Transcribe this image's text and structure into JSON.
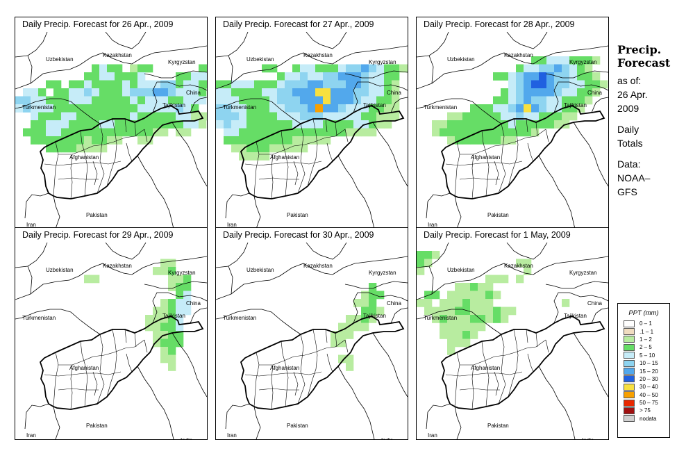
{
  "panels": [
    {
      "title": "Daily Precip. Forecast for  26 Apr., 2009",
      "precip": [
        [
          3,
          10,
          [
            3,
            4,
            3,
            3,
            0,
            2,
            3,
            3,
            0,
            0,
            0,
            0,
            0,
            0,
            3,
            3,
            3
          ]
        ],
        [
          4,
          9,
          [
            3,
            3,
            4,
            4,
            3,
            3,
            3,
            4,
            0,
            0,
            0,
            0,
            3,
            3,
            4,
            4,
            4
          ]
        ],
        [
          5,
          4,
          [
            3,
            3,
            0,
            3,
            3,
            4,
            3,
            3,
            3,
            3,
            4,
            3,
            4,
            4,
            4,
            5,
            5,
            3,
            4,
            4,
            3,
            3
          ]
        ],
        [
          6,
          1,
          [
            4,
            4,
            3,
            0,
            3,
            3,
            4,
            4,
            5,
            4,
            3,
            3,
            3,
            4,
            5,
            5,
            5,
            6,
            6,
            5,
            4,
            4,
            4,
            3
          ]
        ],
        [
          7,
          0,
          [
            5,
            5,
            4,
            4,
            3,
            3,
            3,
            4,
            4,
            4,
            3,
            3,
            3,
            3,
            3,
            4,
            3,
            4,
            4,
            4,
            3,
            3,
            4,
            4,
            4
          ]
        ],
        [
          8,
          0,
          [
            4,
            5,
            4,
            4,
            4,
            3,
            3,
            3,
            3,
            3,
            3,
            3,
            3,
            3,
            3,
            3,
            4,
            4,
            4,
            4,
            4,
            5,
            4,
            3
          ]
        ],
        [
          9,
          2,
          [
            4,
            3,
            3,
            3,
            4,
            4,
            3,
            3,
            3,
            3,
            3,
            3,
            3,
            4,
            3,
            3,
            3,
            3,
            3,
            4,
            4,
            2,
            2,
            2
          ]
        ],
        [
          10,
          2,
          [
            3,
            3,
            4,
            4,
            4,
            3,
            3,
            3,
            3,
            4,
            4,
            3,
            3,
            3,
            3,
            3,
            3,
            3,
            3,
            3,
            4,
            4,
            2
          ]
        ],
        [
          11,
          1,
          [
            3,
            3,
            3,
            4,
            4,
            3,
            3,
            3,
            3,
            3,
            3,
            3,
            3,
            3,
            3,
            3,
            3,
            2,
            2,
            0,
            2,
            2
          ]
        ],
        [
          12,
          2,
          [
            3,
            3,
            3,
            3,
            3,
            3,
            3,
            2,
            3,
            3,
            2,
            2,
            0,
            0,
            2,
            2
          ]
        ],
        [
          13,
          4,
          [
            3,
            3,
            3,
            3,
            2,
            2,
            2,
            2
          ]
        ]
      ]
    },
    {
      "title": "Daily Precip. Forecast for  27 Apr., 2009",
      "precip": [
        [
          3,
          6,
          [
            3,
            3,
            0,
            0,
            3,
            4,
            4,
            3,
            3,
            3,
            4,
            5,
            5,
            6,
            5,
            4,
            3,
            3,
            2,
            2,
            2
          ]
        ],
        [
          4,
          8,
          [
            3,
            4,
            4,
            5,
            4,
            4,
            5,
            5,
            6,
            6,
            6,
            5,
            4,
            4,
            3,
            3
          ]
        ],
        [
          5,
          0,
          [
            3,
            3,
            4,
            4,
            4,
            3,
            3,
            3,
            4,
            5,
            5,
            5,
            6,
            6,
            5,
            5,
            5,
            6,
            6,
            5,
            4,
            4,
            3,
            2
          ]
        ],
        [
          6,
          0,
          [
            4,
            4,
            3,
            3,
            3,
            3,
            4,
            4,
            5,
            5,
            6,
            6,
            6,
            8,
            8,
            6,
            6,
            6,
            5,
            5,
            4,
            4,
            3,
            2
          ]
        ],
        [
          7,
          0,
          [
            4,
            4,
            4,
            3,
            3,
            3,
            3,
            4,
            5,
            5,
            5,
            6,
            6,
            6,
            8,
            6,
            6,
            6,
            5,
            4,
            4,
            3,
            3,
            2
          ]
        ],
        [
          8,
          0,
          [
            5,
            5,
            4,
            4,
            3,
            3,
            3,
            4,
            4,
            5,
            5,
            5,
            6,
            9,
            6,
            6,
            5,
            4,
            4,
            4,
            3,
            3,
            2,
            2
          ]
        ],
        [
          9,
          0,
          [
            5,
            5,
            5,
            4,
            3,
            3,
            3,
            3,
            4,
            4,
            4,
            5,
            5,
            5,
            4,
            4,
            4,
            4,
            4,
            3,
            3,
            2,
            2,
            2
          ]
        ],
        [
          10,
          0,
          [
            4,
            5,
            4,
            4,
            3,
            3,
            3,
            3,
            3,
            3,
            4,
            4,
            4,
            4,
            3,
            3,
            3,
            3,
            4,
            4,
            3,
            2,
            2
          ]
        ],
        [
          11,
          1,
          [
            4,
            4,
            3,
            3,
            3,
            3,
            3,
            3,
            3,
            3,
            3,
            3,
            3,
            3,
            3,
            3,
            2,
            2,
            2,
            2
          ]
        ],
        [
          12,
          1,
          [
            3,
            3,
            3,
            3,
            3,
            3,
            3,
            3,
            3,
            2,
            2,
            2,
            2,
            2
          ]
        ],
        [
          13,
          2,
          [
            2,
            2,
            3,
            3,
            3,
            2,
            2,
            2,
            2,
            2
          ]
        ],
        [
          14,
          3,
          [
            2,
            2,
            2,
            2
          ]
        ]
      ]
    },
    {
      "title": "Daily Precip. Forecast for  28 Apr., 2009",
      "precip": [
        [
          2,
          15,
          [
            3,
            3,
            4,
            4,
            4,
            3,
            3,
            3,
            2
          ]
        ],
        [
          3,
          13,
          [
            3,
            4,
            4,
            5,
            5,
            6,
            5,
            4,
            3,
            2
          ]
        ],
        [
          4,
          10,
          [
            3,
            3,
            4,
            5,
            6,
            6,
            7,
            6,
            5,
            5,
            4,
            3,
            3,
            2
          ]
        ],
        [
          5,
          12,
          [
            4,
            5,
            6,
            7,
            7,
            6,
            5,
            5,
            4,
            4,
            3,
            3,
            2
          ]
        ],
        [
          6,
          11,
          [
            3,
            4,
            5,
            6,
            6,
            6,
            6,
            5,
            4,
            4,
            3,
            3,
            2
          ]
        ],
        [
          7,
          10,
          [
            3,
            3,
            4,
            5,
            6,
            5,
            5,
            4,
            4,
            3,
            3,
            3,
            2
          ]
        ],
        [
          8,
          7,
          [
            3,
            3,
            3,
            4,
            4,
            5,
            6,
            8,
            6,
            5,
            4,
            4,
            3,
            3,
            2
          ]
        ],
        [
          9,
          4,
          [
            2,
            2,
            3,
            3,
            3,
            3,
            3,
            4,
            4,
            5,
            4,
            4,
            3,
            3,
            3,
            2,
            2
          ]
        ],
        [
          10,
          2,
          [
            2,
            2,
            3,
            3,
            3,
            3,
            3,
            3,
            3,
            3,
            4,
            3,
            3,
            3,
            3,
            3,
            2,
            2
          ]
        ],
        [
          11,
          2,
          [
            2,
            3,
            3,
            3,
            3,
            3,
            3,
            3,
            3,
            3,
            3,
            3,
            3,
            2
          ]
        ],
        [
          12,
          4,
          [
            2,
            3,
            3,
            3,
            3,
            3,
            3,
            2,
            2
          ]
        ]
      ]
    },
    {
      "title": "Daily Precip. Forecast for  29 Apr., 2009",
      "precip": [
        [
          1,
          19,
          [
            2,
            2
          ]
        ],
        [
          2,
          18,
          [
            2,
            2,
            3
          ]
        ],
        [
          3,
          9,
          [
            2,
            2,
            0,
            0,
            0,
            0,
            0,
            0,
            0,
            0,
            0,
            2,
            2,
            3
          ]
        ],
        [
          4,
          20,
          [
            2,
            3,
            3
          ]
        ],
        [
          5,
          21,
          [
            3,
            4
          ]
        ],
        [
          6,
          19,
          [
            2,
            3,
            4,
            4
          ]
        ],
        [
          7,
          18,
          [
            2,
            2,
            3,
            4,
            4
          ]
        ],
        [
          8,
          17,
          [
            2,
            2,
            2,
            3,
            4
          ]
        ],
        [
          9,
          17,
          [
            2,
            2,
            3,
            3,
            4
          ]
        ],
        [
          10,
          18,
          [
            2,
            2,
            3,
            3
          ]
        ],
        [
          11,
          18,
          [
            2,
            3,
            3,
            3
          ]
        ],
        [
          12,
          19,
          [
            2,
            3
          ]
        ],
        [
          13,
          19,
          [
            2,
            2
          ]
        ],
        [
          14,
          20,
          [
            2
          ]
        ]
      ]
    },
    {
      "title": "Daily Precip. Forecast for  30 Apr., 2009",
      "precip": [
        [
          4,
          20,
          [
            3
          ]
        ],
        [
          5,
          19,
          [
            2,
            3,
            3
          ]
        ],
        [
          6,
          18,
          [
            2,
            2,
            3
          ]
        ],
        [
          7,
          19,
          [
            3,
            3,
            2
          ]
        ],
        [
          8,
          17,
          [
            2,
            2,
            3,
            2
          ]
        ],
        [
          9,
          16,
          [
            2,
            2,
            2,
            2
          ]
        ],
        [
          10,
          15,
          [
            2,
            2,
            2
          ]
        ],
        [
          11,
          15,
          [
            2,
            2
          ]
        ],
        [
          13,
          16,
          [
            2,
            2
          ]
        ],
        [
          14,
          17,
          [
            2
          ]
        ]
      ]
    },
    {
      "title": "Daily Precip. Forecast for  1 May, 2009",
      "precip": [
        [
          0,
          0,
          [
            3,
            3,
            2
          ]
        ],
        [
          1,
          0,
          [
            3,
            2,
            0,
            0,
            0,
            0,
            0,
            0,
            0,
            0,
            0,
            0,
            0,
            2,
            2
          ]
        ],
        [
          2,
          0,
          [
            2,
            0,
            0,
            0,
            0,
            0,
            0,
            0,
            0,
            0,
            0,
            0,
            0,
            0,
            2
          ]
        ],
        [
          3,
          9,
          [
            2,
            2,
            2,
            0,
            2
          ]
        ],
        [
          4,
          5,
          [
            2,
            2,
            3,
            2,
            2
          ]
        ],
        [
          5,
          1,
          [
            3,
            3,
            0,
            2,
            2,
            2,
            2,
            2,
            3,
            2
          ]
        ],
        [
          6,
          0,
          [
            2,
            2,
            0,
            2,
            2,
            2,
            3,
            2,
            2,
            2,
            0,
            0,
            0,
            0,
            0,
            0,
            0,
            0,
            0,
            2
          ]
        ],
        [
          7,
          1,
          [
            2,
            2,
            2,
            2,
            3,
            3,
            2,
            2,
            2,
            3,
            2,
            2
          ]
        ],
        [
          8,
          2,
          [
            2,
            3,
            2,
            2,
            2,
            3,
            3,
            2,
            3,
            2
          ]
        ],
        [
          9,
          3,
          [
            2,
            2,
            2,
            2,
            2,
            2
          ]
        ],
        [
          10,
          3,
          [
            2,
            2,
            2,
            3,
            2
          ]
        ],
        [
          11,
          4,
          [
            2,
            2,
            2
          ]
        ],
        [
          12,
          4,
          [
            2
          ]
        ]
      ]
    }
  ],
  "map_labels": {
    "uzbekistan": "Uzbekistan",
    "kazakhstan": "Kazakhstan",
    "kyrgyzstan": "Kyrgyzstan",
    "turkmenistan": "Turkmenistan",
    "china": "China",
    "tajikistan": "Tajikistan",
    "afghanistan": "Afghanistan",
    "iran": "Iran",
    "pakistan": "Pakistan",
    "india": "India"
  },
  "sidebar": {
    "title_line1": "Precip.",
    "title_line2": "Forecast",
    "asof_label": "as of:",
    "date_line1": "26 Apr.",
    "date_line2": "2009",
    "daily_line1": "Daily",
    "daily_line2": "Totals",
    "data_line1": "Data:",
    "data_line2": "NOAA–",
    "data_line3": "GFS"
  },
  "legend": {
    "title": "PPT (mm)",
    "items": [
      {
        "range": "0 – 1",
        "color": "#ffffff"
      },
      {
        "range": ".1 – 1",
        "color": "#f0dcc0"
      },
      {
        "range": "1 – 2",
        "color": "#b8eca0"
      },
      {
        "range": "2 – 5",
        "color": "#66dd66"
      },
      {
        "range": "5 – 10",
        "color": "#c6ecf8"
      },
      {
        "range": "10 – 15",
        "color": "#8ed4f0"
      },
      {
        "range": "15 – 20",
        "color": "#52a8ec"
      },
      {
        "range": "20 – 30",
        "color": "#2060e0"
      },
      {
        "range": "30 – 40",
        "color": "#f8e040"
      },
      {
        "range": "40 – 50",
        "color": "#f8a000"
      },
      {
        "range": "50 – 75",
        "color": "#e82800"
      },
      {
        "range": "> 75",
        "color": "#a01010"
      },
      {
        "range": "nodata",
        "color": "#d0d0d0"
      }
    ]
  }
}
